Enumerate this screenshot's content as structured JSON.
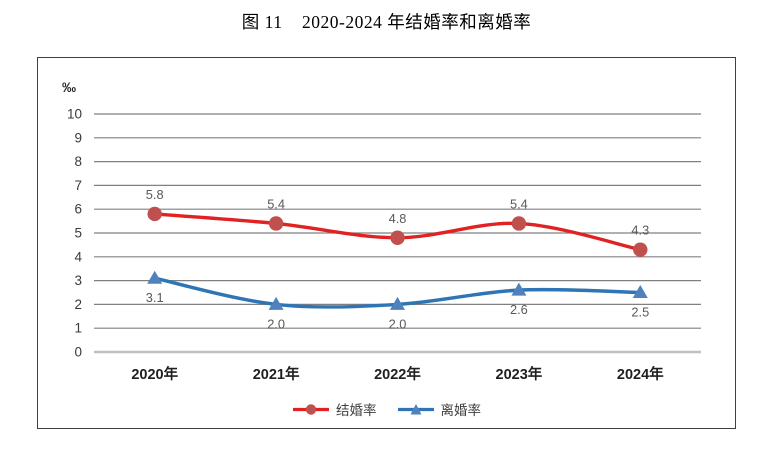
{
  "title": "图 11    2020-2024 年结婚率和离婚率",
  "chart_data": {
    "type": "line",
    "title": "图 11 2020-2024 年结婚率和离婚率",
    "unit_label": "‰",
    "categories": [
      "2020年",
      "2021年",
      "2022年",
      "2023年",
      "2024年"
    ],
    "series": [
      {
        "key": "marriage-rate",
        "name": "结婚率",
        "values": [
          5.8,
          5.4,
          4.8,
          5.4,
          4.3
        ],
        "color": "#e02222",
        "marker_color": "#c0504d",
        "marker": "circle",
        "label_position": "above"
      },
      {
        "key": "divorce-rate",
        "name": "离婚率",
        "values": [
          3.1,
          2.0,
          2.0,
          2.6,
          2.5
        ],
        "color": "#2e75b6",
        "marker_color": "#4f81bd",
        "marker": "triangle",
        "label_position": "below"
      }
    ],
    "ylim": [
      0,
      10
    ],
    "ytick_step": 1,
    "grid": true,
    "smooth": true,
    "legend_position": "bottom"
  },
  "colors": {
    "grid_line": "#808080",
    "zero_line": "#bfbfbf",
    "frame_border": "#3f3f3f",
    "background": "#ffffff"
  }
}
